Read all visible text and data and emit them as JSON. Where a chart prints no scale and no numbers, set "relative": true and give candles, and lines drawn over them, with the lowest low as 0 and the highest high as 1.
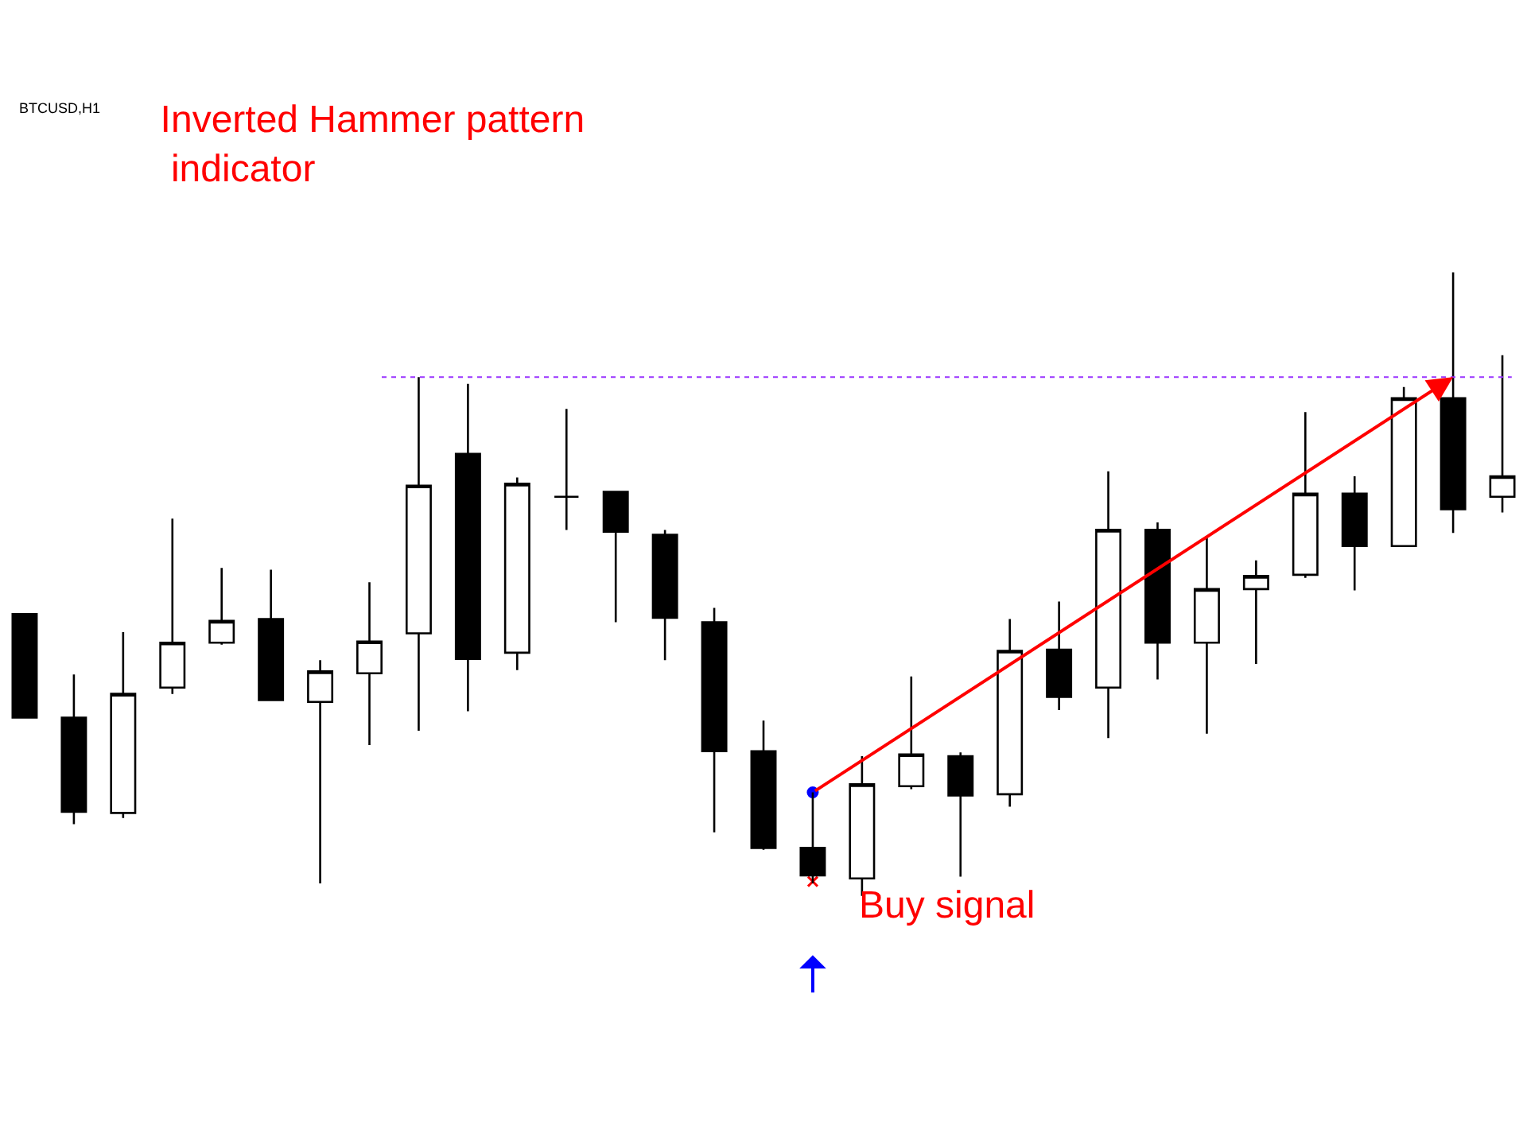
{
  "chart_data": {
    "type": "candlestick",
    "relative": true,
    "title": "Inverted Hammer pattern\n indicator",
    "subtitle": "BTCUSD,H1",
    "annotations": [
      "Buy signal"
    ],
    "categories": [
      null,
      null,
      null,
      null,
      null,
      null,
      null,
      null,
      null,
      null,
      null,
      null,
      null,
      null,
      null,
      null,
      null,
      null,
      null,
      null,
      null,
      null,
      null,
      null,
      null,
      null,
      null,
      null,
      null,
      null,
      null
    ],
    "ohlc": [
      [
        0.452,
        0.452,
        0.286,
        0.286
      ],
      [
        0.286,
        0.355,
        0.115,
        0.135
      ],
      [
        0.133,
        0.423,
        0.125,
        0.324
      ],
      [
        0.334,
        0.605,
        0.324,
        0.406
      ],
      [
        0.406,
        0.526,
        0.403,
        0.441
      ],
      [
        0.444,
        0.523,
        0.314,
        0.314
      ],
      [
        0.311,
        0.378,
        0.02,
        0.36
      ],
      [
        0.357,
        0.503,
        0.242,
        0.408
      ],
      [
        0.421,
        0.832,
        0.265,
        0.658
      ],
      [
        0.709,
        0.821,
        0.296,
        0.38
      ],
      [
        0.39,
        0.671,
        0.362,
        0.661
      ],
      [
        0.64,
        0.781,
        0.587,
        0.64
      ],
      [
        0.648,
        0.648,
        0.439,
        0.584
      ],
      [
        0.579,
        0.587,
        0.378,
        0.446
      ],
      [
        0.439,
        0.462,
        0.102,
        0.232
      ],
      [
        0.232,
        0.281,
        0.074,
        0.077
      ],
      [
        0.077,
        0.166,
        0.02,
        0.033
      ],
      [
        0.028,
        0.224,
        0,
        0.179
      ],
      [
        0.176,
        0.352,
        0.171,
        0.227
      ],
      [
        0.224,
        0.23,
        0.031,
        0.161
      ],
      [
        0.163,
        0.444,
        0.143,
        0.393
      ],
      [
        0.395,
        0.472,
        0.298,
        0.319
      ],
      [
        0.334,
        0.681,
        0.253,
        0.587
      ],
      [
        0.587,
        0.599,
        0.347,
        0.406
      ],
      [
        0.406,
        0.574,
        0.26,
        0.492
      ],
      [
        0.492,
        0.538,
        0.372,
        0.513
      ],
      [
        0.515,
        0.776,
        0.51,
        0.645
      ],
      [
        0.645,
        0.673,
        0.49,
        0.561
      ],
      [
        0.561,
        0.816,
        0.561,
        0.798
      ],
      [
        0.798,
        1,
        0.582,
        0.62
      ],
      [
        0.64,
        0.867,
        0.615,
        0.673
      ]
    ],
    "series": [
      {
        "type": "scatter",
        "color": "#0000ff",
        "marker": "circle",
        "values": [
          null,
          null,
          null,
          null,
          null,
          null,
          null,
          null,
          null,
          null,
          null,
          null,
          null,
          null,
          null,
          null,
          0.166,
          null,
          null,
          null,
          null,
          null,
          null,
          null,
          null,
          null,
          null,
          null,
          null,
          null,
          null
        ]
      },
      {
        "type": "scatter",
        "color": "#ff0000",
        "marker": "cross",
        "values": [
          null,
          null,
          null,
          null,
          null,
          null,
          null,
          null,
          null,
          null,
          null,
          null,
          null,
          null,
          null,
          null,
          0.023,
          null,
          null,
          null,
          null,
          null,
          null,
          null,
          null,
          null,
          null,
          null,
          null,
          null,
          null
        ]
      }
    ],
    "ref_lines": [
      {
        "axis": "y",
        "value": 0.832,
        "color": "#9933ff",
        "line_style": "dotted"
      }
    ],
    "tick_labels": false
  }
}
